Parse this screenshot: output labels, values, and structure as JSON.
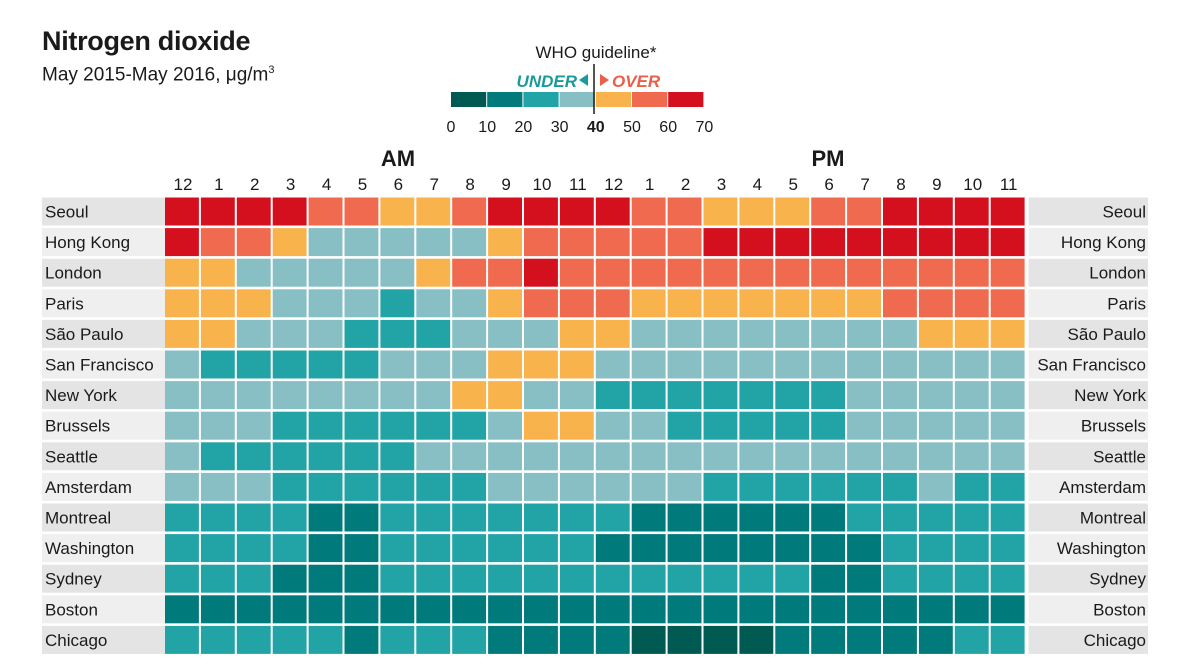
{
  "title": "Nitrogen dioxide",
  "subtitle": "May 2015-May 2016, μg/m",
  "subtitle_superscript": "3",
  "legend": {
    "heading": "WHO guideline*",
    "under_label": "UNDER",
    "over_label": "OVER",
    "under_color": "#1a9a9a",
    "over_color": "#e8604a",
    "guideline_value": "40",
    "bin_colors": [
      "#005a52",
      "#007a7a",
      "#22a3a6",
      "#87bfc5",
      "#f9b34d",
      "#ef6a4f",
      "#d40f1e"
    ],
    "tick_labels": [
      "0",
      "10",
      "20",
      "30",
      "40",
      "50",
      "60",
      "70"
    ]
  },
  "chart_data": {
    "type": "heatmap",
    "title": "Nitrogen dioxide",
    "subtitle": "May 2015-May 2016, μg/m3",
    "period_labels": [
      "AM",
      "PM"
    ],
    "hours": [
      "12",
      "1",
      "2",
      "3",
      "4",
      "5",
      "6",
      "7",
      "8",
      "9",
      "10",
      "11",
      "12",
      "1",
      "2",
      "3",
      "4",
      "5",
      "6",
      "7",
      "8",
      "9",
      "10",
      "11"
    ],
    "cities": [
      "Seoul",
      "Hong Kong",
      "London",
      "Paris",
      "São Paulo",
      "San Francisco",
      "New York",
      "Brussels",
      "Seattle",
      "Amsterdam",
      "Montreal",
      "Washington",
      "Sydney",
      "Boston",
      "Chicago"
    ],
    "value_unit": "μg/m3",
    "bins": [
      [
        0,
        10
      ],
      [
        10,
        20
      ],
      [
        20,
        30
      ],
      [
        30,
        40
      ],
      [
        40,
        50
      ],
      [
        50,
        60
      ],
      [
        60,
        70
      ]
    ],
    "color_scale": [
      "#005a52",
      "#007a7a",
      "#22a3a6",
      "#87bfc5",
      "#f9b34d",
      "#ef6a4f",
      "#d40f1e"
    ],
    "values": [
      [
        65,
        65,
        65,
        65,
        55,
        55,
        45,
        45,
        55,
        65,
        65,
        65,
        65,
        55,
        55,
        45,
        45,
        45,
        55,
        55,
        65,
        65,
        65,
        65
      ],
      [
        65,
        55,
        55,
        45,
        35,
        35,
        35,
        35,
        35,
        45,
        55,
        55,
        55,
        55,
        55,
        65,
        65,
        65,
        65,
        65,
        65,
        65,
        65,
        65
      ],
      [
        45,
        45,
        35,
        35,
        35,
        35,
        35,
        45,
        55,
        55,
        65,
        55,
        55,
        55,
        55,
        55,
        55,
        55,
        55,
        55,
        55,
        55,
        55,
        55
      ],
      [
        45,
        45,
        45,
        35,
        35,
        35,
        25,
        35,
        35,
        45,
        55,
        55,
        55,
        45,
        45,
        45,
        45,
        45,
        45,
        45,
        55,
        55,
        55,
        55
      ],
      [
        45,
        45,
        35,
        35,
        35,
        25,
        25,
        25,
        35,
        35,
        35,
        45,
        45,
        35,
        35,
        35,
        35,
        35,
        35,
        35,
        35,
        45,
        45,
        45
      ],
      [
        35,
        25,
        25,
        25,
        25,
        25,
        35,
        35,
        35,
        45,
        45,
        45,
        35,
        35,
        35,
        35,
        35,
        35,
        35,
        35,
        35,
        35,
        35,
        35
      ],
      [
        35,
        35,
        35,
        35,
        35,
        35,
        35,
        35,
        45,
        45,
        35,
        35,
        25,
        25,
        25,
        25,
        25,
        25,
        25,
        35,
        35,
        35,
        35,
        35
      ],
      [
        35,
        35,
        35,
        25,
        25,
        25,
        25,
        25,
        25,
        35,
        45,
        45,
        35,
        35,
        25,
        25,
        25,
        25,
        25,
        35,
        35,
        35,
        35,
        35
      ],
      [
        35,
        25,
        25,
        25,
        25,
        25,
        25,
        35,
        35,
        35,
        35,
        35,
        35,
        35,
        35,
        35,
        35,
        35,
        35,
        35,
        35,
        35,
        35,
        35
      ],
      [
        35,
        35,
        35,
        25,
        25,
        25,
        25,
        25,
        25,
        35,
        35,
        35,
        35,
        35,
        35,
        25,
        25,
        25,
        25,
        25,
        25,
        35,
        25,
        25
      ],
      [
        25,
        25,
        25,
        25,
        15,
        15,
        25,
        25,
        25,
        25,
        25,
        25,
        25,
        15,
        15,
        15,
        15,
        15,
        15,
        25,
        25,
        25,
        25,
        25
      ],
      [
        25,
        25,
        25,
        25,
        15,
        15,
        25,
        25,
        25,
        25,
        25,
        25,
        15,
        15,
        15,
        15,
        15,
        15,
        15,
        15,
        25,
        25,
        25,
        25
      ],
      [
        25,
        25,
        25,
        15,
        15,
        15,
        25,
        25,
        25,
        25,
        25,
        25,
        25,
        25,
        25,
        25,
        25,
        25,
        15,
        15,
        25,
        25,
        25,
        25
      ],
      [
        15,
        15,
        15,
        15,
        15,
        15,
        15,
        15,
        15,
        15,
        15,
        15,
        15,
        15,
        15,
        15,
        15,
        15,
        15,
        15,
        15,
        15,
        15,
        15
      ],
      [
        25,
        25,
        25,
        25,
        25,
        15,
        25,
        25,
        25,
        15,
        15,
        15,
        15,
        5,
        5,
        5,
        5,
        15,
        15,
        15,
        15,
        15,
        25,
        25
      ]
    ]
  }
}
